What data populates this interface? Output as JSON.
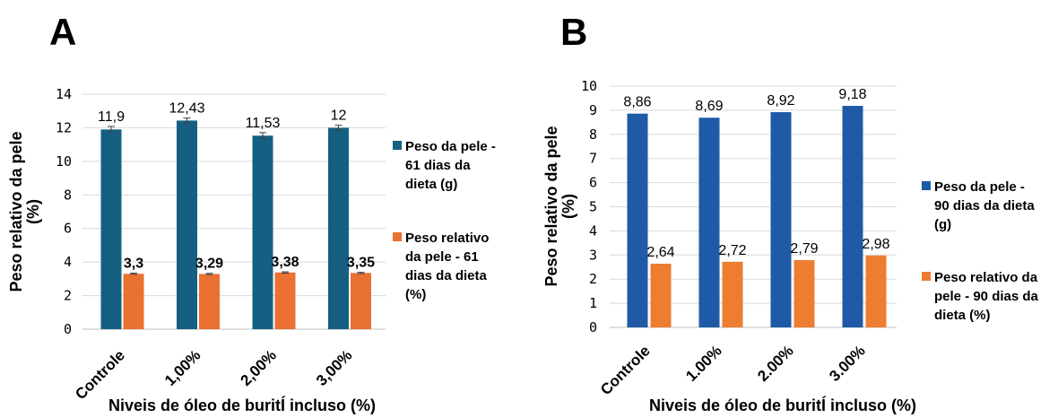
{
  "chart_data": [
    {
      "panel": "A",
      "type": "bar",
      "categories": [
        "Controle",
        "1,00%",
        "2,00%",
        "3,00%"
      ],
      "xlabel": "Niveis de óleo de buritÍ incluso (%)",
      "ylabel": "Peso relativo da pele (%)",
      "ylim": [
        0,
        14
      ],
      "ystep": 2,
      "grid": true,
      "error_bars": true,
      "legend_position": "right",
      "series": [
        {
          "name": "Peso da pele - 61 dias da dieta (g)",
          "legend_lines": [
            "Peso da pele -",
            "61 dias da",
            "dieta (g)"
          ],
          "values": [
            11.9,
            12.43,
            11.53,
            12
          ],
          "labels": [
            "11,9",
            "12,43",
            "11,53",
            "12"
          ],
          "errors": [
            0.18,
            0.15,
            0.18,
            0.15
          ],
          "color": "#156082",
          "label_bold": false
        },
        {
          "name": "Peso relativo da pele - 61 dias da dieta (%)",
          "legend_lines": [
            "Peso relativo",
            "da pele - 61",
            "dias da dieta",
            "(%)"
          ],
          "values": [
            3.3,
            3.29,
            3.38,
            3.35
          ],
          "labels": [
            "3,3",
            "3,29",
            "3,38",
            "3,35"
          ],
          "errors": [
            0.04,
            0.04,
            0.04,
            0.04
          ],
          "color": "#E97132",
          "label_bold": true
        }
      ]
    },
    {
      "panel": "B",
      "type": "bar",
      "categories": [
        "Controle",
        "1.00%",
        "2.00%",
        "3.00%"
      ],
      "xlabel": "Niveis de óleo de buritÍ incluso (%)",
      "ylabel": "Peso relativo da pele (%)",
      "ylim": [
        0,
        10
      ],
      "ystep": 1,
      "grid": true,
      "error_bars": false,
      "legend_position": "right",
      "series": [
        {
          "name": "Peso da pele - 90 dias da dieta (g)",
          "legend_lines": [
            "Peso da pele -",
            "90 dias da dieta",
            "(g)"
          ],
          "values": [
            8.86,
            8.69,
            8.92,
            9.18
          ],
          "labels": [
            "8,86",
            "8,69",
            "8,92",
            "9,18"
          ],
          "color": "#1F5AA6",
          "label_bold": false
        },
        {
          "name": "Peso relativo da pele - 90 dias da dieta (%)",
          "legend_lines": [
            "Peso relativo da",
            "pele - 90 dias da",
            "dieta (%)"
          ],
          "values": [
            2.64,
            2.72,
            2.79,
            2.98
          ],
          "labels": [
            "2,64",
            "2,72",
            "2,79",
            "2,98"
          ],
          "color": "#ED7D31",
          "label_bold": false
        }
      ]
    }
  ]
}
